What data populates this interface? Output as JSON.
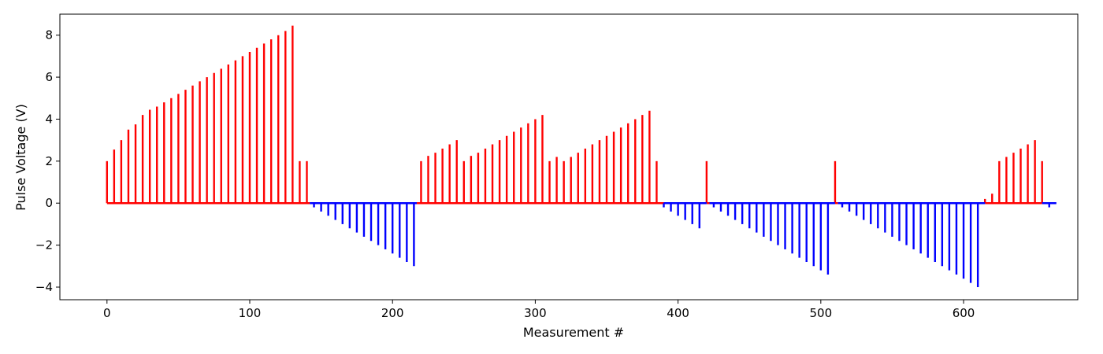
{
  "chart_data": {
    "type": "bar",
    "title": "",
    "xlabel": "Measurement #",
    "ylabel": "Pulse Voltage (V)",
    "xlim": [
      -33,
      680
    ],
    "ylim": [
      -4.6,
      9.0
    ],
    "xticks": [
      0,
      100,
      200,
      300,
      400,
      500,
      600
    ],
    "yticks": [
      -4,
      -2,
      0,
      2,
      4,
      6,
      8
    ],
    "xtick_labels": [
      "0",
      "100",
      "200",
      "300",
      "400",
      "500",
      "600"
    ],
    "ytick_labels": [
      "−4",
      "−2",
      "0",
      "2",
      "4",
      "6",
      "8"
    ],
    "grid": false,
    "colors": {
      "positive": "#ff0000",
      "negative": "#0000ff"
    },
    "series": [
      {
        "color": "#ff0000",
        "segments": [
          [
            0,
            142
          ],
          [
            217,
            390
          ],
          [
            420,
            422
          ],
          [
            510,
            512
          ],
          [
            615,
            655
          ]
        ],
        "x": [
          0,
          5,
          10,
          15,
          20,
          25,
          30,
          35,
          40,
          45,
          50,
          55,
          60,
          65,
          70,
          75,
          80,
          85,
          90,
          95,
          100,
          105,
          110,
          115,
          120,
          125,
          130,
          135,
          140,
          220,
          225,
          230,
          235,
          240,
          245,
          250,
          255,
          260,
          265,
          270,
          275,
          280,
          285,
          290,
          295,
          300,
          305,
          310,
          315,
          320,
          325,
          330,
          335,
          340,
          345,
          350,
          355,
          360,
          365,
          370,
          375,
          380,
          385,
          420,
          510,
          615,
          620,
          625,
          630,
          635,
          640,
          645,
          650,
          655
        ],
        "values": [
          2.0,
          2.55,
          3.0,
          3.5,
          3.75,
          4.2,
          4.45,
          4.6,
          4.8,
          5.0,
          5.2,
          5.4,
          5.6,
          5.8,
          6.0,
          6.2,
          6.4,
          6.6,
          6.8,
          7.0,
          7.2,
          7.4,
          7.6,
          7.8,
          8.0,
          8.2,
          8.45,
          2.0,
          2.0,
          2.0,
          2.25,
          2.4,
          2.6,
          2.8,
          3.0,
          2.0,
          2.25,
          2.4,
          2.6,
          2.8,
          3.0,
          3.2,
          3.4,
          3.6,
          3.8,
          4.0,
          4.2,
          2.0,
          2.2,
          2.0,
          2.2,
          2.4,
          2.6,
          2.8,
          3.0,
          3.2,
          3.4,
          3.6,
          3.8,
          4.0,
          4.2,
          4.4,
          2.0,
          2.0,
          2.0,
          0.2,
          0.45,
          2.0,
          2.2,
          2.4,
          2.6,
          2.8,
          3.0,
          2.0
        ]
      },
      {
        "color": "#0000ff",
        "segments": [
          [
            142,
            217
          ],
          [
            390,
            420
          ],
          [
            422,
            510
          ],
          [
            512,
            615
          ],
          [
            655,
            665
          ]
        ],
        "x": [
          145,
          150,
          155,
          160,
          165,
          170,
          175,
          180,
          185,
          190,
          195,
          200,
          205,
          210,
          215,
          390,
          395,
          400,
          405,
          410,
          415,
          425,
          430,
          435,
          440,
          445,
          450,
          455,
          460,
          465,
          470,
          475,
          480,
          485,
          490,
          495,
          500,
          505,
          515,
          520,
          525,
          530,
          535,
          540,
          545,
          550,
          555,
          560,
          565,
          570,
          575,
          580,
          585,
          590,
          595,
          600,
          605,
          610,
          660
        ],
        "values": [
          -0.2,
          -0.4,
          -0.6,
          -0.8,
          -1.0,
          -1.2,
          -1.4,
          -1.6,
          -1.8,
          -2.0,
          -2.2,
          -2.4,
          -2.6,
          -2.8,
          -3.0,
          -0.2,
          -0.4,
          -0.6,
          -0.8,
          -1.0,
          -1.2,
          -0.2,
          -0.4,
          -0.6,
          -0.8,
          -1.0,
          -1.2,
          -1.4,
          -1.6,
          -1.8,
          -2.0,
          -2.2,
          -2.4,
          -2.6,
          -2.8,
          -3.0,
          -3.2,
          -3.4,
          -0.2,
          -0.4,
          -0.6,
          -0.8,
          -1.0,
          -1.2,
          -1.4,
          -1.6,
          -1.8,
          -2.0,
          -2.2,
          -2.4,
          -2.6,
          -2.8,
          -3.0,
          -3.2,
          -3.4,
          -3.6,
          -3.8,
          -4.0,
          -0.2
        ]
      }
    ]
  }
}
